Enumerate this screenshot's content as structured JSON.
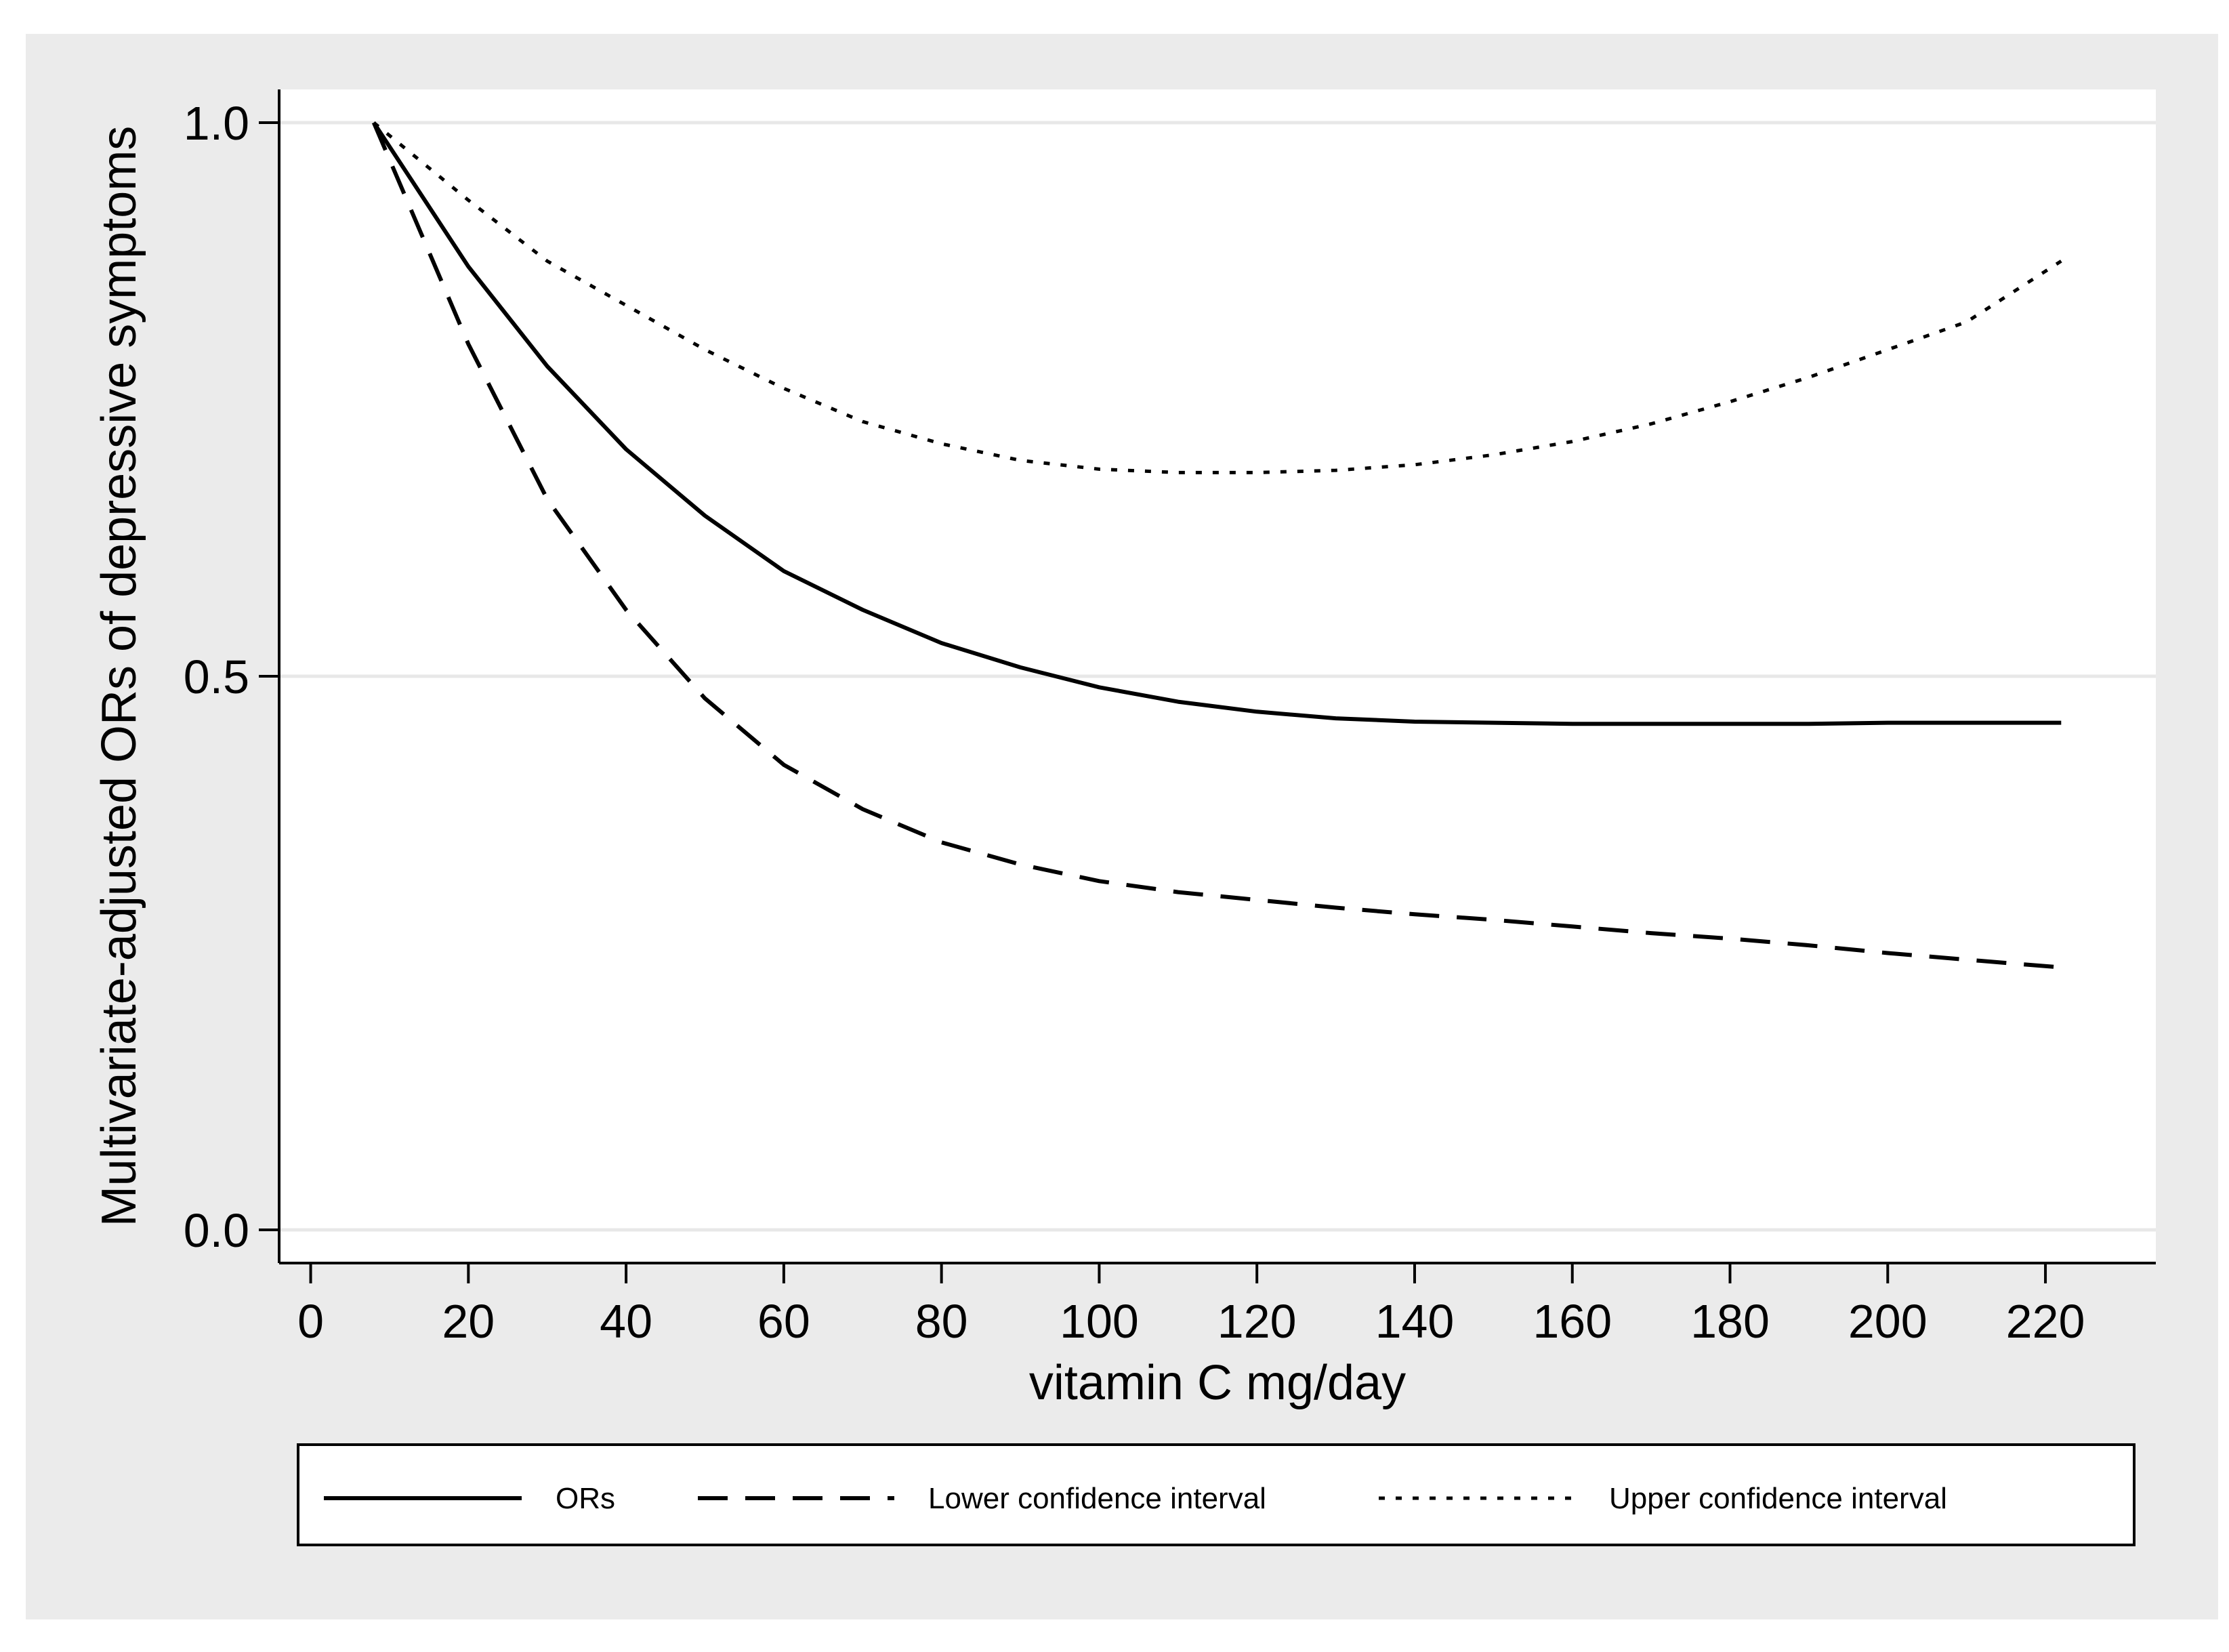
{
  "chart_data": {
    "type": "line",
    "title": "",
    "xlabel": "vitamin C mg/day",
    "ylabel": "Multivariate-adjusted ORs of depressive symptoms",
    "xlim": [
      -4,
      234
    ],
    "ylim": [
      -0.03,
      1.03
    ],
    "xticks": [
      0,
      20,
      40,
      60,
      80,
      100,
      120,
      140,
      160,
      180,
      200,
      220
    ],
    "yticks": [
      0.0,
      0.5,
      1.0
    ],
    "ytick_labels": [
      "0.0",
      "0.5",
      "1.0"
    ],
    "grid": "horizontal",
    "legend_position": "bottom",
    "x": [
      8,
      20,
      30,
      40,
      50,
      60,
      70,
      80,
      90,
      100,
      110,
      120,
      130,
      140,
      150,
      160,
      170,
      180,
      190,
      200,
      210,
      222
    ],
    "series": [
      {
        "name": "ORs",
        "style": "solid",
        "color": "#000000",
        "values": [
          1.0,
          0.87,
          0.78,
          0.705,
          0.645,
          0.595,
          0.56,
          0.53,
          0.508,
          0.49,
          0.477,
          0.468,
          0.462,
          0.459,
          0.458,
          0.457,
          0.457,
          0.457,
          0.457,
          0.458,
          0.458,
          0.458
        ]
      },
      {
        "name": "Lower confidence interval",
        "style": "dashed",
        "color": "#000000",
        "values": [
          1.0,
          0.8,
          0.66,
          0.56,
          0.48,
          0.42,
          0.38,
          0.35,
          0.33,
          0.315,
          0.305,
          0.298,
          0.291,
          0.285,
          0.28,
          0.274,
          0.268,
          0.263,
          0.257,
          0.25,
          0.244,
          0.237
        ]
      },
      {
        "name": "Upper confidence interval",
        "style": "dotted",
        "color": "#000000",
        "values": [
          1.0,
          0.93,
          0.875,
          0.835,
          0.795,
          0.76,
          0.73,
          0.71,
          0.695,
          0.687,
          0.684,
          0.684,
          0.686,
          0.691,
          0.7,
          0.712,
          0.728,
          0.748,
          0.77,
          0.795,
          0.82,
          0.875
        ]
      }
    ]
  }
}
